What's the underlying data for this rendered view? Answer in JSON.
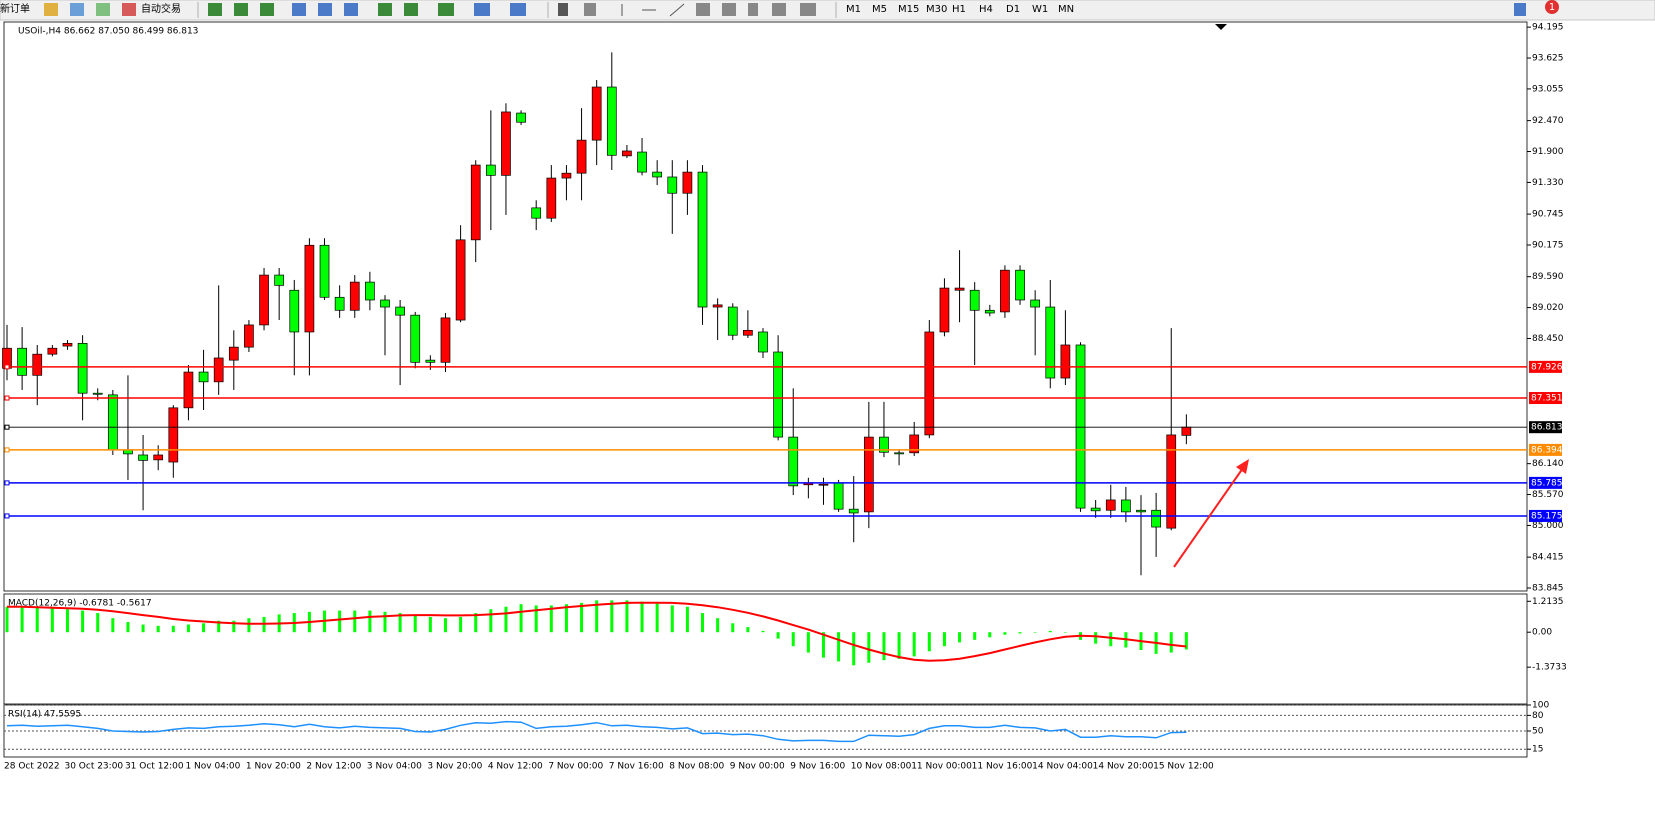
{
  "toolbar": {
    "new_order": "新订单",
    "auto_trade": "自动交易",
    "timeframes": [
      "M1",
      "M5",
      "M15",
      "M30",
      "H1",
      "H4",
      "D1",
      "W1",
      "MN"
    ],
    "badge": 1
  },
  "chart_data": [
    {
      "type": "candlestick",
      "title": "USOil-,H4 86.662 87.050 86.499 86.813",
      "categories": [
        "28 Oct 2022",
        null,
        null,
        null,
        "30 Oct 23:00",
        null,
        null,
        null,
        "31 Oct 12:00",
        null,
        null,
        null,
        "1 Nov 04:00",
        null,
        null,
        null,
        "1 Nov 20:00",
        null,
        null,
        null,
        "2 Nov 12:00",
        null,
        null,
        null,
        "3 Nov 04:00",
        null,
        null,
        null,
        "3 Nov 20:00",
        null,
        null,
        null,
        "4 Nov 12:00",
        null,
        null,
        null,
        "7 Nov 00:00",
        null,
        null,
        null,
        "7 Nov 16:00",
        null,
        null,
        null,
        "8 Nov 08:00",
        null,
        null,
        null,
        "9 Nov 00:00",
        null,
        null,
        null,
        "9 Nov 16:00",
        null,
        null,
        null,
        "10 Nov 08:00",
        null,
        null,
        null,
        "11 Nov 00:00",
        null,
        null,
        null,
        "11 Nov 16:00",
        null,
        null,
        null,
        "14 Nov 04:00",
        null,
        null,
        null,
        "14 Nov 20:00",
        null,
        null,
        null,
        "15 Nov 12:00",
        null,
        null
      ],
      "open": [
        87.9,
        88.27,
        87.77,
        88.16,
        88.31,
        88.36,
        87.44,
        87.41,
        86.39,
        86.3,
        86.21,
        86.17,
        87.17,
        87.83,
        87.65,
        88.05,
        88.29,
        88.7,
        89.62,
        89.34,
        88.57,
        90.17,
        89.21,
        88.97,
        89.49,
        89.16,
        89.03,
        88.88,
        88.05,
        88.01,
        88.79,
        90.27,
        91.65,
        91.46,
        92.61,
        90.86,
        90.67,
        91.41,
        91.5,
        92.11,
        93.09,
        91.82,
        91.89,
        91.52,
        91.43,
        91.13,
        91.52,
        89.03,
        89.03,
        88.51,
        88.57,
        88.2,
        86.63,
        85.75,
        85.76,
        85.78,
        85.3,
        85.25,
        86.63,
        86.34,
        86.34,
        86.67,
        88.57,
        89.34,
        89.34,
        88.97,
        88.94,
        89.71,
        89.16,
        89.03,
        87.72,
        88.33,
        85.32,
        85.28,
        85.47,
        85.28,
        85.28,
        84.95,
        86.662
      ],
      "high": [
        88.7,
        88.66,
        88.33,
        88.33,
        88.42,
        88.51,
        87.53,
        87.5,
        87.77,
        86.67,
        86.48,
        87.22,
        87.96,
        88.24,
        89.43,
        88.6,
        88.79,
        89.75,
        89.75,
        89.53,
        90.3,
        90.3,
        89.43,
        89.62,
        89.68,
        89.25,
        89.16,
        88.94,
        88.14,
        88.92,
        90.54,
        91.74,
        92.66,
        92.79,
        92.66,
        91.0,
        91.65,
        91.65,
        92.7,
        93.22,
        93.73,
        92.02,
        92.15,
        91.74,
        91.74,
        91.74,
        91.65,
        89.19,
        89.1,
        88.97,
        88.64,
        88.51,
        87.53,
        85.88,
        85.88,
        85.84,
        85.91,
        87.28,
        87.28,
        86.39,
        86.91,
        88.79,
        89.56,
        90.08,
        89.49,
        89.07,
        89.8,
        89.8,
        89.34,
        89.53,
        88.97,
        88.38,
        85.47,
        85.75,
        85.71,
        85.56,
        85.6,
        88.64,
        87.05
      ],
      "low": [
        87.68,
        87.5,
        87.22,
        88.12,
        88.24,
        86.94,
        87.31,
        86.3,
        85.84,
        85.28,
        86.02,
        85.88,
        86.94,
        87.13,
        87.41,
        87.5,
        88.2,
        88.6,
        88.79,
        87.77,
        87.77,
        89.16,
        88.83,
        88.83,
        88.97,
        88.14,
        87.59,
        87.9,
        87.87,
        87.83,
        88.75,
        89.86,
        90.45,
        90.73,
        92.39,
        90.45,
        90.6,
        91.0,
        91.0,
        91.65,
        91.56,
        91.78,
        91.46,
        91.28,
        90.38,
        90.73,
        88.7,
        88.42,
        88.42,
        88.46,
        88.09,
        86.57,
        85.56,
        85.5,
        85.38,
        85.25,
        84.69,
        84.95,
        86.26,
        86.11,
        86.28,
        86.61,
        88.49,
        88.75,
        87.96,
        88.86,
        88.83,
        89.07,
        88.14,
        87.53,
        87.59,
        85.25,
        85.14,
        85.14,
        85.06,
        84.08,
        84.42,
        84.91,
        86.499
      ],
      "close": [
        88.27,
        87.77,
        88.16,
        88.27,
        88.36,
        87.44,
        87.42,
        86.39,
        86.32,
        86.2,
        86.3,
        87.17,
        87.83,
        87.65,
        88.09,
        88.29,
        88.7,
        89.62,
        89.43,
        88.57,
        90.17,
        89.21,
        88.97,
        89.49,
        89.16,
        89.03,
        88.88,
        88.01,
        88.01,
        88.83,
        90.27,
        91.65,
        91.46,
        92.63,
        92.44,
        90.67,
        91.41,
        91.5,
        92.11,
        93.09,
        91.83,
        91.91,
        91.52,
        91.43,
        91.13,
        91.52,
        89.03,
        89.07,
        88.51,
        88.6,
        88.2,
        86.63,
        85.73,
        85.78,
        85.76,
        85.3,
        85.23,
        86.63,
        86.35,
        86.32,
        86.67,
        88.57,
        89.38,
        89.38,
        88.97,
        88.92,
        89.71,
        89.16,
        89.03,
        87.72,
        88.33,
        85.32,
        85.27,
        85.47,
        85.25,
        85.25,
        84.97,
        86.67,
        86.813
      ],
      "up_color": "#ff0000",
      "down_color": "#00ff00",
      "ylim": [
        83.79,
        94.29
      ],
      "yticks": [
        94.195,
        93.625,
        93.055,
        {
          "value": 92.47,
          "label": "92.470"
        },
        {
          "value": 91.9,
          "label": "91.900"
        },
        {
          "value": 91.33,
          "label": "91.330"
        },
        90.745,
        90.175,
        {
          "value": 89.59,
          "label": "89.590"
        },
        {
          "value": 89.02,
          "label": "89.020"
        },
        {
          "value": 88.45,
          "label": "88.450"
        },
        {
          "value": 86.14,
          "label": "86.140"
        },
        {
          "value": 85.57,
          "label": "85.570"
        },
        {
          "value": 85,
          "label": "85.000"
        },
        84.415,
        83.845
      ],
      "levels": [
        {
          "value": 87.926,
          "color": "#ff0000"
        },
        {
          "value": 87.351,
          "color": "#ff0000"
        },
        {
          "value": 86.813,
          "color": "#000000"
        },
        {
          "value": 86.394,
          "color": "#ff8c00"
        },
        {
          "value": 85.785,
          "color": "#0000ff"
        },
        {
          "value": 85.175,
          "color": "#0000ff"
        }
      ]
    },
    {
      "type": "macd",
      "title": "MACD(12,26,9) -0.6781 -0.5617",
      "values": [
        1.0,
        1.0,
        0.95,
        0.95,
        0.9,
        0.85,
        0.75,
        0.55,
        0.4,
        0.3,
        0.25,
        0.25,
        0.3,
        0.35,
        0.45,
        0.45,
        0.55,
        0.6,
        0.7,
        0.75,
        0.8,
        0.85,
        0.85,
        0.85,
        0.85,
        0.8,
        0.75,
        0.65,
        0.6,
        0.55,
        0.6,
        0.75,
        0.9,
        1.0,
        1.1,
        1.05,
        1.05,
        1.1,
        1.15,
        1.25,
        1.25,
        1.25,
        1.2,
        1.15,
        1.05,
        1.0,
        0.75,
        0.55,
        0.35,
        0.2,
        0.05,
        -0.25,
        -0.55,
        -0.8,
        -1.0,
        -1.15,
        -1.3,
        -1.2,
        -1.1,
        -1.05,
        -0.95,
        -0.75,
        -0.55,
        -0.4,
        -0.3,
        -0.2,
        -0.1,
        -0.05,
        0.0,
        0.05,
        0.0,
        -0.3,
        -0.45,
        -0.55,
        -0.6,
        -0.7,
        -0.85,
        -0.8,
        -0.6781
      ],
      "signal": [
        1.0,
        1.0,
        0.98,
        0.96,
        0.94,
        0.92,
        0.88,
        0.82,
        0.75,
        0.67,
        0.6,
        0.52,
        0.46,
        0.42,
        0.38,
        0.35,
        0.33,
        0.33,
        0.34,
        0.36,
        0.4,
        0.45,
        0.5,
        0.55,
        0.6,
        0.63,
        0.66,
        0.67,
        0.67,
        0.66,
        0.66,
        0.67,
        0.7,
        0.74,
        0.8,
        0.86,
        0.92,
        0.98,
        1.03,
        1.08,
        1.12,
        1.15,
        1.16,
        1.16,
        1.15,
        1.12,
        1.06,
        0.98,
        0.88,
        0.76,
        0.62,
        0.46,
        0.28,
        0.1,
        -0.1,
        -0.3,
        -0.5,
        -0.68,
        -0.84,
        -0.98,
        -1.08,
        -1.12,
        -1.1,
        -1.04,
        -0.94,
        -0.82,
        -0.68,
        -0.54,
        -0.4,
        -0.28,
        -0.18,
        -0.14,
        -0.16,
        -0.22,
        -0.28,
        -0.35,
        -0.42,
        -0.5,
        -0.5617
      ],
      "color": "#00ff00",
      "signal_color": "#ff0000",
      "ylim": [
        -2.82,
        1.5
      ],
      "yticks": [
        1.2135,
        {
          "value": 0,
          "label": "0.00"
        },
        -1.3733
      ]
    },
    {
      "type": "rsi",
      "title": "RSI(14) 47.5595",
      "values": [
        60,
        61,
        59,
        60,
        61,
        58,
        55,
        50,
        49,
        48,
        49,
        53,
        56,
        55,
        58,
        59,
        61,
        64,
        62,
        58,
        63,
        58,
        56,
        59,
        57,
        56,
        55,
        49,
        48,
        53,
        61,
        66,
        65,
        68,
        67,
        55,
        58,
        59,
        62,
        66,
        60,
        61,
        58,
        57,
        54,
        56,
        45,
        46,
        43,
        44,
        41,
        34,
        31,
        32,
        32,
        30,
        30,
        42,
        41,
        40,
        43,
        55,
        60,
        60,
        57,
        57,
        61,
        57,
        56,
        50,
        53,
        38,
        38,
        41,
        39,
        39,
        37,
        47,
        47.5595
      ],
      "color": "#1e90ff",
      "ylim": [
        0,
        100
      ],
      "yticks": [
        100,
        80,
        50,
        15
      ]
    }
  ]
}
